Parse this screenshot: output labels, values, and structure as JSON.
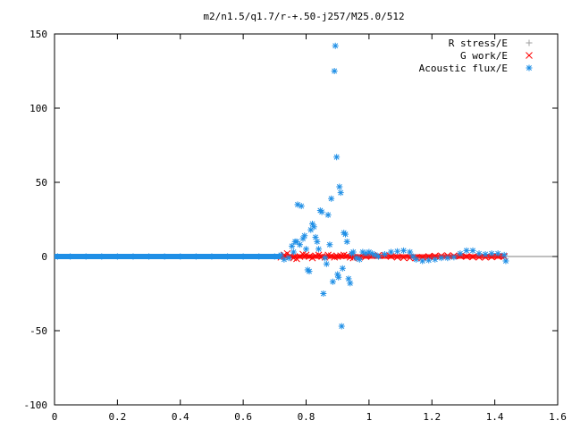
{
  "chart_data": {
    "type": "scatter",
    "title": "m2/n1.5/q1.7/r-+.50-j257/M25.0/512",
    "xlabel": "",
    "ylabel": "",
    "xlim": [
      0,
      1.6
    ],
    "ylim": [
      -100,
      150
    ],
    "x_ticks": [
      "0",
      "0.2",
      "0.4",
      "0.6",
      "0.8",
      "1",
      "1.2",
      "1.4",
      "1.6"
    ],
    "y_ticks": [
      "150",
      "100",
      "50",
      "0",
      "-50",
      "-100"
    ],
    "legend_position": "top-right",
    "grid": false,
    "series": [
      {
        "name": "R stress/E",
        "marker": "+",
        "color": "#a0a0a0",
        "points": [
          [
            0.72,
            0.0
          ],
          [
            0.8,
            0.2
          ],
          [
            0.9,
            -0.1
          ],
          [
            1.0,
            0.1
          ],
          [
            1.1,
            0.0
          ],
          [
            1.2,
            0.1
          ],
          [
            1.3,
            0.0
          ],
          [
            1.43,
            0.0
          ]
        ]
      },
      {
        "name": "G work/E",
        "marker": "x",
        "color": "#ff0000",
        "points": [
          [
            0.72,
            -0.5
          ],
          [
            0.73,
            1.0
          ],
          [
            0.74,
            2.0
          ],
          [
            0.75,
            0.5
          ],
          [
            0.76,
            -1.0
          ],
          [
            0.77,
            -1.5
          ],
          [
            0.78,
            0.0
          ],
          [
            0.79,
            1.5
          ],
          [
            0.8,
            1.0
          ],
          [
            0.81,
            0.0
          ],
          [
            0.82,
            -1.0
          ],
          [
            0.83,
            0.5
          ],
          [
            0.84,
            1.0
          ],
          [
            0.85,
            0.0
          ],
          [
            0.86,
            -0.5
          ],
          [
            0.87,
            1.0
          ],
          [
            0.88,
            0.5
          ],
          [
            0.89,
            -0.5
          ],
          [
            0.9,
            0.0
          ],
          [
            0.91,
            0.5
          ],
          [
            0.92,
            1.0
          ],
          [
            0.93,
            0.5
          ],
          [
            0.94,
            -0.5
          ],
          [
            0.95,
            -1.0
          ],
          [
            0.97,
            -0.5
          ],
          [
            0.99,
            0.0
          ],
          [
            1.01,
            0.5
          ],
          [
            1.03,
            0.8
          ],
          [
            1.05,
            0.5
          ],
          [
            1.07,
            0.0
          ],
          [
            1.09,
            -0.5
          ],
          [
            1.11,
            -0.8
          ],
          [
            1.13,
            -1.0
          ],
          [
            1.15,
            -0.8
          ],
          [
            1.17,
            -0.5
          ],
          [
            1.19,
            0.0
          ],
          [
            1.21,
            0.3
          ],
          [
            1.23,
            0.5
          ],
          [
            1.25,
            0.6
          ],
          [
            1.27,
            0.5
          ],
          [
            1.29,
            0.3
          ],
          [
            1.31,
            0.0
          ],
          [
            1.33,
            -0.3
          ],
          [
            1.35,
            -0.5
          ],
          [
            1.37,
            -0.5
          ],
          [
            1.39,
            -0.3
          ],
          [
            1.41,
            0.0
          ],
          [
            1.43,
            0.0
          ]
        ]
      },
      {
        "name": "Acoustic flux/E",
        "marker": "*",
        "color": "#1f8fe6",
        "points": [
          [
            0.01,
            0.0
          ],
          [
            0.05,
            0.0
          ],
          [
            0.1,
            0.0
          ],
          [
            0.15,
            0.0
          ],
          [
            0.2,
            0.0
          ],
          [
            0.25,
            0.0
          ],
          [
            0.3,
            0.0
          ],
          [
            0.35,
            0.0
          ],
          [
            0.4,
            0.0
          ],
          [
            0.45,
            0.0
          ],
          [
            0.5,
            0.0
          ],
          [
            0.55,
            0.0
          ],
          [
            0.6,
            0.0
          ],
          [
            0.65,
            0.0
          ],
          [
            0.7,
            0.0
          ],
          [
            0.72,
            1.0
          ],
          [
            0.73,
            -2.0
          ],
          [
            0.745,
            -1.0
          ],
          [
            0.755,
            7.0
          ],
          [
            0.76,
            3.0
          ],
          [
            0.765,
            10.0
          ],
          [
            0.77,
            10.0
          ],
          [
            0.773,
            35.0
          ],
          [
            0.78,
            8.0
          ],
          [
            0.785,
            34.0
          ],
          [
            0.79,
            12.0
          ],
          [
            0.795,
            14.0
          ],
          [
            0.8,
            5.0
          ],
          [
            0.805,
            -9.0
          ],
          [
            0.81,
            -10.0
          ],
          [
            0.815,
            18.0
          ],
          [
            0.82,
            22.0
          ],
          [
            0.825,
            20.0
          ],
          [
            0.83,
            13.0
          ],
          [
            0.835,
            10.0
          ],
          [
            0.84,
            5.0
          ],
          [
            0.845,
            31.0
          ],
          [
            0.85,
            30.0
          ],
          [
            0.855,
            -25.0
          ],
          [
            0.86,
            -1.0
          ],
          [
            0.865,
            -5.0
          ],
          [
            0.87,
            28.0
          ],
          [
            0.875,
            8.0
          ],
          [
            0.88,
            39.0
          ],
          [
            0.885,
            -17.0
          ],
          [
            0.89,
            125.0
          ],
          [
            0.893,
            142.0
          ],
          [
            0.897,
            67.0
          ],
          [
            0.9,
            -12.0
          ],
          [
            0.903,
            -14.0
          ],
          [
            0.906,
            47.0
          ],
          [
            0.91,
            43.0
          ],
          [
            0.913,
            -47.0
          ],
          [
            0.916,
            -8.0
          ],
          [
            0.92,
            16.0
          ],
          [
            0.925,
            15.0
          ],
          [
            0.93,
            10.0
          ],
          [
            0.935,
            -15.0
          ],
          [
            0.94,
            -18.0
          ],
          [
            0.945,
            2.0
          ],
          [
            0.95,
            3.0
          ],
          [
            0.96,
            -1.0
          ],
          [
            0.97,
            -2.0
          ],
          [
            0.98,
            3.0
          ],
          [
            0.99,
            2.0
          ],
          [
            1.0,
            3.0
          ],
          [
            1.01,
            2.0
          ],
          [
            1.02,
            1.0
          ],
          [
            1.03,
            0.0
          ],
          [
            1.05,
            1.5
          ],
          [
            1.07,
            3.0
          ],
          [
            1.09,
            3.5
          ],
          [
            1.11,
            4.0
          ],
          [
            1.13,
            3.0
          ],
          [
            1.14,
            0.0
          ],
          [
            1.15,
            -2.0
          ],
          [
            1.17,
            -3.0
          ],
          [
            1.19,
            -2.5
          ],
          [
            1.21,
            -2.0
          ],
          [
            1.23,
            -1.0
          ],
          [
            1.25,
            -1.0
          ],
          [
            1.27,
            -0.5
          ],
          [
            1.29,
            2.0
          ],
          [
            1.31,
            4.0
          ],
          [
            1.33,
            4.0
          ],
          [
            1.35,
            2.0
          ],
          [
            1.37,
            1.5
          ],
          [
            1.39,
            2.0
          ],
          [
            1.41,
            2.0
          ],
          [
            1.43,
            1.0
          ],
          [
            1.435,
            -3.0
          ]
        ]
      }
    ]
  },
  "legend": [
    {
      "label": "R stress/E",
      "icon": "plus-marker-icon"
    },
    {
      "label": "G work/E",
      "icon": "cross-marker-icon"
    },
    {
      "label": "Acoustic flux/E",
      "icon": "star-marker-icon"
    }
  ]
}
